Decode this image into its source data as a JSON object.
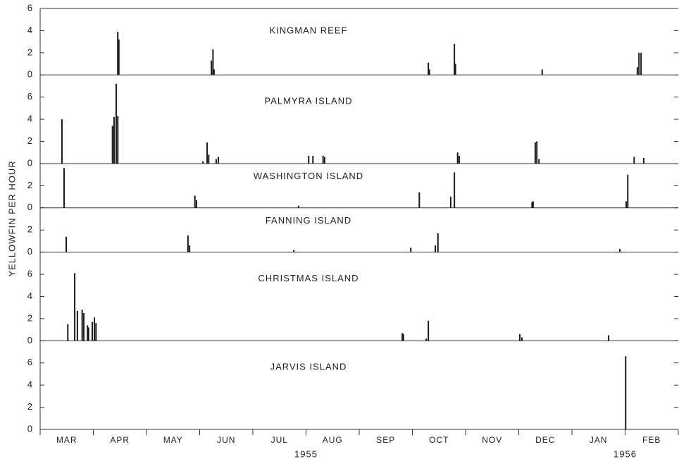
{
  "chart_data": {
    "type": "bar",
    "y_label": "YELLOWFIN PER HOUR",
    "categories": [
      "MAR",
      "APR",
      "MAY",
      "JUN",
      "JUL",
      "AUG",
      "SEP",
      "OCT",
      "NOV",
      "DEC",
      "JAN",
      "FEB"
    ],
    "year_labels": [
      "1955",
      "1956"
    ],
    "xlim": [
      0,
      12
    ],
    "color": "#1a1a1a",
    "panels": [
      {
        "title": "KINGMAN REEF",
        "ylim": [
          0,
          6
        ],
        "yticks": [
          0,
          2,
          4,
          6
        ],
        "x": [
          1.46,
          1.48,
          3.22,
          3.25,
          3.27,
          7.3,
          7.32,
          7.79,
          7.81,
          9.44,
          11.23,
          11.26,
          11.3
        ],
        "values": [
          3.9,
          3.2,
          1.3,
          2.3,
          0.5,
          1.1,
          0.5,
          2.8,
          1.0,
          0.5,
          0.7,
          2.0,
          2.0
        ]
      },
      {
        "title": "PALMYRA ISLAND",
        "ylim": [
          0,
          8
        ],
        "yticks": [
          0,
          2,
          4,
          6
        ],
        "x": [
          0.41,
          1.36,
          1.39,
          1.43,
          1.46,
          3.06,
          3.14,
          3.17,
          3.31,
          3.35,
          5.05,
          5.13,
          5.32,
          5.35,
          7.85,
          7.88,
          9.31,
          9.34,
          9.38,
          11.17,
          11.35
        ],
        "values": [
          4.0,
          3.4,
          4.2,
          7.2,
          4.3,
          0.2,
          1.9,
          0.8,
          0.4,
          0.6,
          0.7,
          0.7,
          0.7,
          0.6,
          1.0,
          0.7,
          1.9,
          2.0,
          0.4,
          0.6,
          0.5
        ]
      },
      {
        "title": "WASHINGTON ISLAND",
        "ylim": [
          0,
          4
        ],
        "yticks": [
          0,
          2
        ],
        "x": [
          0.45,
          2.91,
          2.94,
          4.86,
          7.13,
          7.72,
          7.79,
          9.25,
          9.27,
          11.02,
          11.05
        ],
        "values": [
          3.6,
          1.1,
          0.7,
          0.2,
          1.4,
          1.0,
          3.2,
          0.5,
          0.6,
          0.6,
          3.0
        ]
      },
      {
        "title": "FANNING ISLAND",
        "ylim": [
          0,
          4
        ],
        "yticks": [
          0,
          2
        ],
        "x": [
          0.49,
          2.78,
          2.81,
          4.77,
          6.97,
          7.43,
          7.48,
          10.9
        ],
        "values": [
          1.4,
          1.5,
          0.6,
          0.2,
          0.4,
          0.6,
          1.7,
          0.3
        ]
      },
      {
        "title": "CHRISTMAS ISLAND",
        "ylim": [
          0,
          8
        ],
        "yticks": [
          0,
          2,
          4,
          6
        ],
        "x": [
          0.52,
          0.65,
          0.7,
          0.79,
          0.82,
          0.89,
          0.91,
          0.98,
          1.02,
          1.05,
          6.81,
          6.83,
          7.26,
          7.3,
          9.02,
          9.06,
          10.69
        ],
        "values": [
          1.5,
          6.1,
          2.7,
          2.8,
          2.5,
          1.4,
          1.2,
          1.7,
          2.1,
          1.6,
          0.7,
          0.6,
          0.2,
          1.8,
          0.6,
          0.3,
          0.5
        ]
      },
      {
        "title": "JARVIS ISLAND",
        "ylim": [
          0,
          8
        ],
        "yticks": [
          0,
          2,
          4,
          6
        ],
        "x": [
          11.01
        ],
        "values": [
          6.6
        ]
      }
    ]
  }
}
